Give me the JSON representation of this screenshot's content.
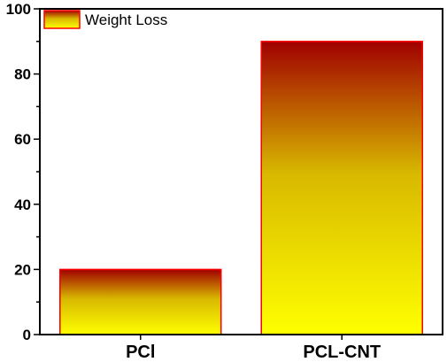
{
  "chart_data": {
    "type": "bar",
    "categories": [
      "PCl",
      "PCL-CNT"
    ],
    "series": [
      {
        "name": "Weight Loss",
        "values": [
          20,
          90
        ]
      }
    ],
    "title": "",
    "xlabel": "",
    "ylabel": "",
    "ylim": [
      0,
      100
    ],
    "yticks": [
      0,
      20,
      40,
      60,
      80,
      100
    ],
    "ytick_labels": [
      "0",
      "20",
      "40",
      "60",
      "80",
      "100"
    ],
    "grid": false,
    "legend_position": "top-left",
    "colors": {
      "gradient_top": "#a00000",
      "gradient_bottom": "#ffff00",
      "bar_border": "#ff0000",
      "axis": "#000000"
    }
  }
}
